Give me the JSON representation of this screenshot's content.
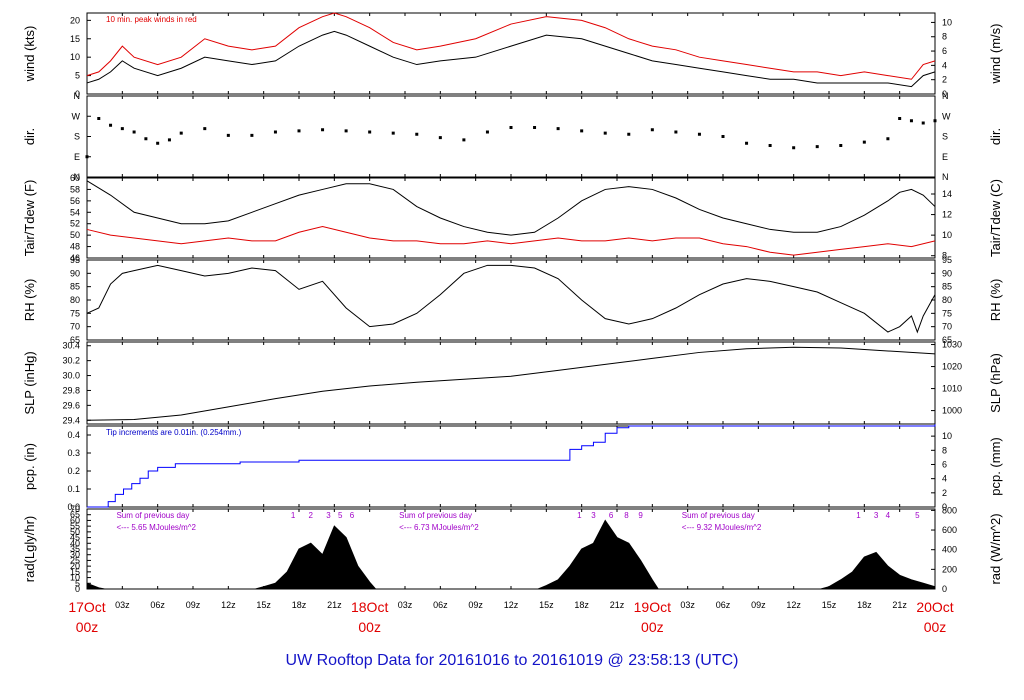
{
  "footer": {
    "title": "UW Rooftop Data for 20161016  to  20161019 @ 23:58:13  (UTC)"
  },
  "time_axis": {
    "hour_ticks": [
      "03z",
      "06z",
      "09z",
      "12z",
      "15z",
      "18z",
      "21z"
    ],
    "day_labels": [
      {
        "hour": 0,
        "top": "17Oct",
        "bottom": "00z"
      },
      {
        "hour": 24,
        "top": "18Oct",
        "bottom": "00z"
      },
      {
        "hour": 48,
        "top": "19Oct",
        "bottom": "00z"
      },
      {
        "hour": 72,
        "top": "20Oct",
        "bottom": "00z"
      }
    ],
    "day_label_color": "#e00000"
  },
  "chart_data": [
    {
      "id": "wind",
      "type": "line",
      "ylabel_left": "wind (kts)",
      "ylabel_right": "wind (m/s)",
      "ylim": [
        0,
        22
      ],
      "left_ticks": [
        0,
        5,
        10,
        15,
        20
      ],
      "right_ticks": [
        0,
        2,
        4,
        6,
        8,
        10
      ],
      "right_scale": 0.5144,
      "annotation": "10 min. peak winds in red",
      "annotation_color": "#e00000",
      "series": [
        {
          "color": "#000000",
          "x": [
            0,
            1,
            2,
            3,
            4,
            6,
            8,
            10,
            12,
            14,
            16,
            18,
            20,
            21,
            22,
            24,
            26,
            28,
            30,
            33,
            36,
            39,
            42,
            44,
            46,
            48,
            50,
            52,
            54,
            56,
            58,
            60,
            62,
            64,
            66,
            68,
            70,
            71,
            72
          ],
          "y": [
            3,
            4,
            6,
            9,
            7,
            5,
            7,
            10,
            9,
            8,
            9,
            13,
            16,
            17,
            16,
            13,
            10,
            8,
            9,
            10,
            13,
            16,
            15,
            13,
            11,
            9,
            8,
            7,
            6,
            5,
            4,
            4,
            3,
            3,
            3,
            3,
            2,
            5,
            6
          ]
        },
        {
          "color": "#e00000",
          "x": [
            0,
            1,
            2,
            3,
            4,
            6,
            8,
            10,
            12,
            14,
            16,
            18,
            20,
            21,
            22,
            24,
            26,
            28,
            30,
            33,
            36,
            39,
            42,
            44,
            46,
            48,
            50,
            52,
            54,
            56,
            58,
            60,
            62,
            64,
            66,
            68,
            70,
            71,
            72
          ],
          "y": [
            5,
            6,
            9,
            13,
            10,
            8,
            10,
            15,
            13,
            12,
            13,
            18,
            21,
            22,
            21,
            18,
            14,
            12,
            13,
            15,
            19,
            21,
            20,
            18,
            15,
            13,
            12,
            10,
            9,
            8,
            7,
            6,
            6,
            5,
            6,
            5,
            4,
            8,
            9
          ]
        }
      ]
    },
    {
      "id": "dir",
      "type": "scatter",
      "ylabel_left": "dir.",
      "ylabel_right": "dir.",
      "ylim": [
        0,
        360
      ],
      "left_tick_values": [
        0,
        90,
        180,
        270,
        360
      ],
      "left_tick_labels": [
        "N",
        "E",
        "S",
        "W",
        "N"
      ],
      "series": [
        {
          "color": "#000000",
          "x": [
            0,
            1,
            2,
            3,
            4,
            5,
            6,
            7,
            8,
            10,
            12,
            14,
            16,
            18,
            20,
            22,
            24,
            26,
            28,
            30,
            32,
            34,
            36,
            38,
            40,
            42,
            44,
            46,
            48,
            50,
            52,
            54,
            56,
            58,
            60,
            62,
            64,
            66,
            68,
            69,
            70,
            71,
            72
          ],
          "y": [
            90,
            260,
            230,
            215,
            200,
            170,
            150,
            165,
            195,
            215,
            185,
            185,
            200,
            205,
            210,
            205,
            200,
            195,
            190,
            175,
            165,
            200,
            220,
            220,
            215,
            205,
            195,
            190,
            210,
            200,
            190,
            180,
            150,
            140,
            130,
            135,
            140,
            155,
            170,
            260,
            250,
            240,
            250
          ]
        }
      ]
    },
    {
      "id": "temp",
      "type": "line",
      "ylabel_left": "Tair/Tdew (F)",
      "ylabel_right": "Tair/Tdew (C)",
      "ylim": [
        46,
        60
      ],
      "left_ticks": [
        46,
        48,
        50,
        52,
        54,
        56,
        58,
        60
      ],
      "right_ticks": [
        8,
        10,
        12,
        14
      ],
      "series": [
        {
          "color": "#000000",
          "x": [
            0,
            2,
            4,
            6,
            8,
            10,
            12,
            14,
            16,
            18,
            20,
            22,
            24,
            26,
            28,
            30,
            32,
            34,
            36,
            38,
            40,
            42,
            44,
            46,
            48,
            50,
            52,
            54,
            56,
            58,
            60,
            62,
            64,
            66,
            68,
            69,
            70,
            71,
            72
          ],
          "y": [
            59.5,
            57,
            54,
            53,
            52,
            52,
            52.5,
            54,
            55.5,
            57,
            58,
            59,
            59,
            58,
            55,
            53,
            51.5,
            50.5,
            50,
            50.5,
            53,
            56,
            58,
            58.5,
            58,
            56.5,
            54.5,
            53,
            52,
            51,
            50.5,
            50.5,
            51.5,
            53.5,
            56,
            57.5,
            58,
            57,
            55
          ]
        },
        {
          "color": "#e00000",
          "x": [
            0,
            2,
            4,
            6,
            8,
            10,
            12,
            14,
            16,
            18,
            20,
            22,
            24,
            26,
            28,
            30,
            32,
            34,
            36,
            38,
            40,
            42,
            44,
            46,
            48,
            50,
            52,
            54,
            56,
            58,
            60,
            62,
            64,
            66,
            68,
            70,
            72
          ],
          "y": [
            51,
            50,
            49.5,
            49,
            48.5,
            49,
            49.5,
            49,
            49,
            50.5,
            51.5,
            50.5,
            49.5,
            49,
            49,
            48.5,
            48.5,
            49,
            48.5,
            49,
            49.5,
            49,
            49,
            49.5,
            49,
            49.5,
            49.5,
            48.5,
            48,
            47,
            46.5,
            47,
            47.5,
            48,
            48.5,
            48,
            49
          ]
        }
      ]
    },
    {
      "id": "rh",
      "type": "line",
      "ylabel_left": "RH (%)",
      "ylabel_right": "RH (%)",
      "ylim": [
        65,
        95
      ],
      "left_ticks": [
        65,
        70,
        75,
        80,
        85,
        90,
        95
      ],
      "right_ticks": [
        65,
        70,
        75,
        80,
        85,
        90,
        95
      ],
      "series": [
        {
          "color": "#000000",
          "x": [
            0,
            1,
            2,
            3,
            4,
            6,
            8,
            10,
            12,
            14,
            16,
            18,
            20,
            22,
            24,
            26,
            28,
            30,
            32,
            34,
            36,
            38,
            40,
            42,
            44,
            46,
            48,
            50,
            52,
            54,
            56,
            58,
            60,
            62,
            64,
            66,
            68,
            69,
            70,
            70.5,
            71,
            72
          ],
          "y": [
            75,
            77,
            86,
            90,
            91,
            93,
            91,
            89,
            90,
            92,
            91,
            84,
            87,
            77,
            70,
            71,
            75,
            82,
            90,
            93,
            93,
            92,
            88,
            80,
            73,
            71,
            73,
            77,
            82,
            86,
            88,
            87,
            85,
            83,
            79,
            75,
            68,
            70,
            74,
            68,
            74,
            82
          ]
        }
      ]
    },
    {
      "id": "slp",
      "type": "line",
      "ylabel_left": "SLP (inHg)",
      "ylabel_right": "SLP (hPa)",
      "ylim": [
        29.35,
        30.45
      ],
      "left_ticks": [
        29.4,
        29.6,
        29.8,
        30.0,
        30.2,
        30.4
      ],
      "right_ticks": [
        1000,
        1010,
        1020,
        1030
      ],
      "series": [
        {
          "color": "#000000",
          "x": [
            0,
            4,
            8,
            12,
            16,
            20,
            24,
            28,
            32,
            36,
            40,
            44,
            48,
            52,
            56,
            60,
            64,
            68,
            72
          ],
          "y": [
            29.4,
            29.41,
            29.47,
            29.58,
            29.69,
            29.79,
            29.86,
            29.91,
            29.95,
            29.99,
            30.07,
            30.15,
            30.23,
            30.31,
            30.36,
            30.38,
            30.37,
            30.33,
            30.29
          ]
        }
      ]
    },
    {
      "id": "pcp",
      "type": "line",
      "ylabel_left": "pcp. (in)",
      "ylabel_right": "pcp. (mm)",
      "ylim": [
        0,
        0.45
      ],
      "left_ticks": [
        0.0,
        0.1,
        0.2,
        0.3,
        0.4
      ],
      "right_ticks": [
        0,
        2,
        4,
        6,
        8,
        10
      ],
      "annotation": "Tip increments are 0.01in. (0.254mm.)",
      "annotation_color": "#0000c8",
      "series": [
        {
          "color": "#0000ff",
          "step": true,
          "x": [
            0,
            1.2,
            1.8,
            2.4,
            3.1,
            3.8,
            4.5,
            5.2,
            6,
            7.5,
            9,
            12,
            13,
            14,
            17,
            18,
            21,
            24,
            27,
            29,
            30,
            31,
            32,
            33,
            34,
            36,
            38,
            40,
            41,
            42,
            43,
            44,
            45,
            46,
            48,
            72
          ],
          "y": [
            0,
            0,
            0.03,
            0.07,
            0.1,
            0.13,
            0.16,
            0.2,
            0.22,
            0.24,
            0.24,
            0.24,
            0.25,
            0.25,
            0.25,
            0.26,
            0.26,
            0.26,
            0.26,
            0.26,
            0.26,
            0.26,
            0.26,
            0.26,
            0.26,
            0.26,
            0.26,
            0.26,
            0.32,
            0.34,
            0.36,
            0.41,
            0.44,
            0.45,
            0.45,
            0.46
          ]
        }
      ]
    },
    {
      "id": "rad",
      "type": "area",
      "ylabel_left": "rad(Lgly/hr)",
      "ylabel_right": "rad (W/m^2)",
      "ylim": [
        0,
        70
      ],
      "left_ticks": [
        0,
        5,
        10,
        15,
        20,
        25,
        30,
        35,
        40,
        45,
        50,
        55,
        60,
        65,
        70
      ],
      "right_ticks": [
        0,
        200,
        400,
        600,
        800
      ],
      "daily_note_line1": "Sum of previous day",
      "daily_note_color": "#a000c8",
      "daily_notes": [
        {
          "hour": 2.5,
          "value": "<--- 5.65 MJoules/m^2"
        },
        {
          "hour": 26.5,
          "value": "<--- 6.73 MJoules/m^2"
        },
        {
          "hour": 50.5,
          "value": "<--- 9.32 MJoules/m^2"
        }
      ],
      "marker_labels": [
        {
          "hour": 17.5,
          "text": "1"
        },
        {
          "hour": 19,
          "text": "2"
        },
        {
          "hour": 20.5,
          "text": "3"
        },
        {
          "hour": 21.5,
          "text": "5"
        },
        {
          "hour": 22.5,
          "text": "6"
        },
        {
          "hour": 41.8,
          "text": "1"
        },
        {
          "hour": 43,
          "text": "3"
        },
        {
          "hour": 44.5,
          "text": "6"
        },
        {
          "hour": 45.8,
          "text": "8"
        },
        {
          "hour": 47,
          "text": "9"
        },
        {
          "hour": 65.5,
          "text": "1"
        },
        {
          "hour": 67,
          "text": "3"
        },
        {
          "hour": 68,
          "text": "4"
        },
        {
          "hour": 70.5,
          "text": "5"
        }
      ],
      "series": [
        {
          "color": "#000000",
          "x": [
            0,
            0.5,
            1,
            1.5,
            14.3,
            15,
            16,
            17,
            18,
            19,
            20,
            21,
            22,
            23,
            24,
            24.5,
            38.3,
            39,
            40,
            41,
            42,
            43,
            44,
            45,
            46,
            47,
            48,
            48.5,
            62.3,
            63,
            64,
            65,
            66,
            67,
            68,
            69,
            70,
            71,
            72
          ],
          "y": [
            5,
            3,
            1,
            0,
            0,
            2,
            5,
            15,
            35,
            40,
            30,
            55,
            45,
            20,
            6,
            0,
            0,
            3,
            8,
            20,
            35,
            40,
            60,
            45,
            40,
            25,
            8,
            0,
            0,
            2,
            8,
            15,
            28,
            32,
            20,
            12,
            8,
            5,
            2
          ]
        }
      ]
    }
  ]
}
